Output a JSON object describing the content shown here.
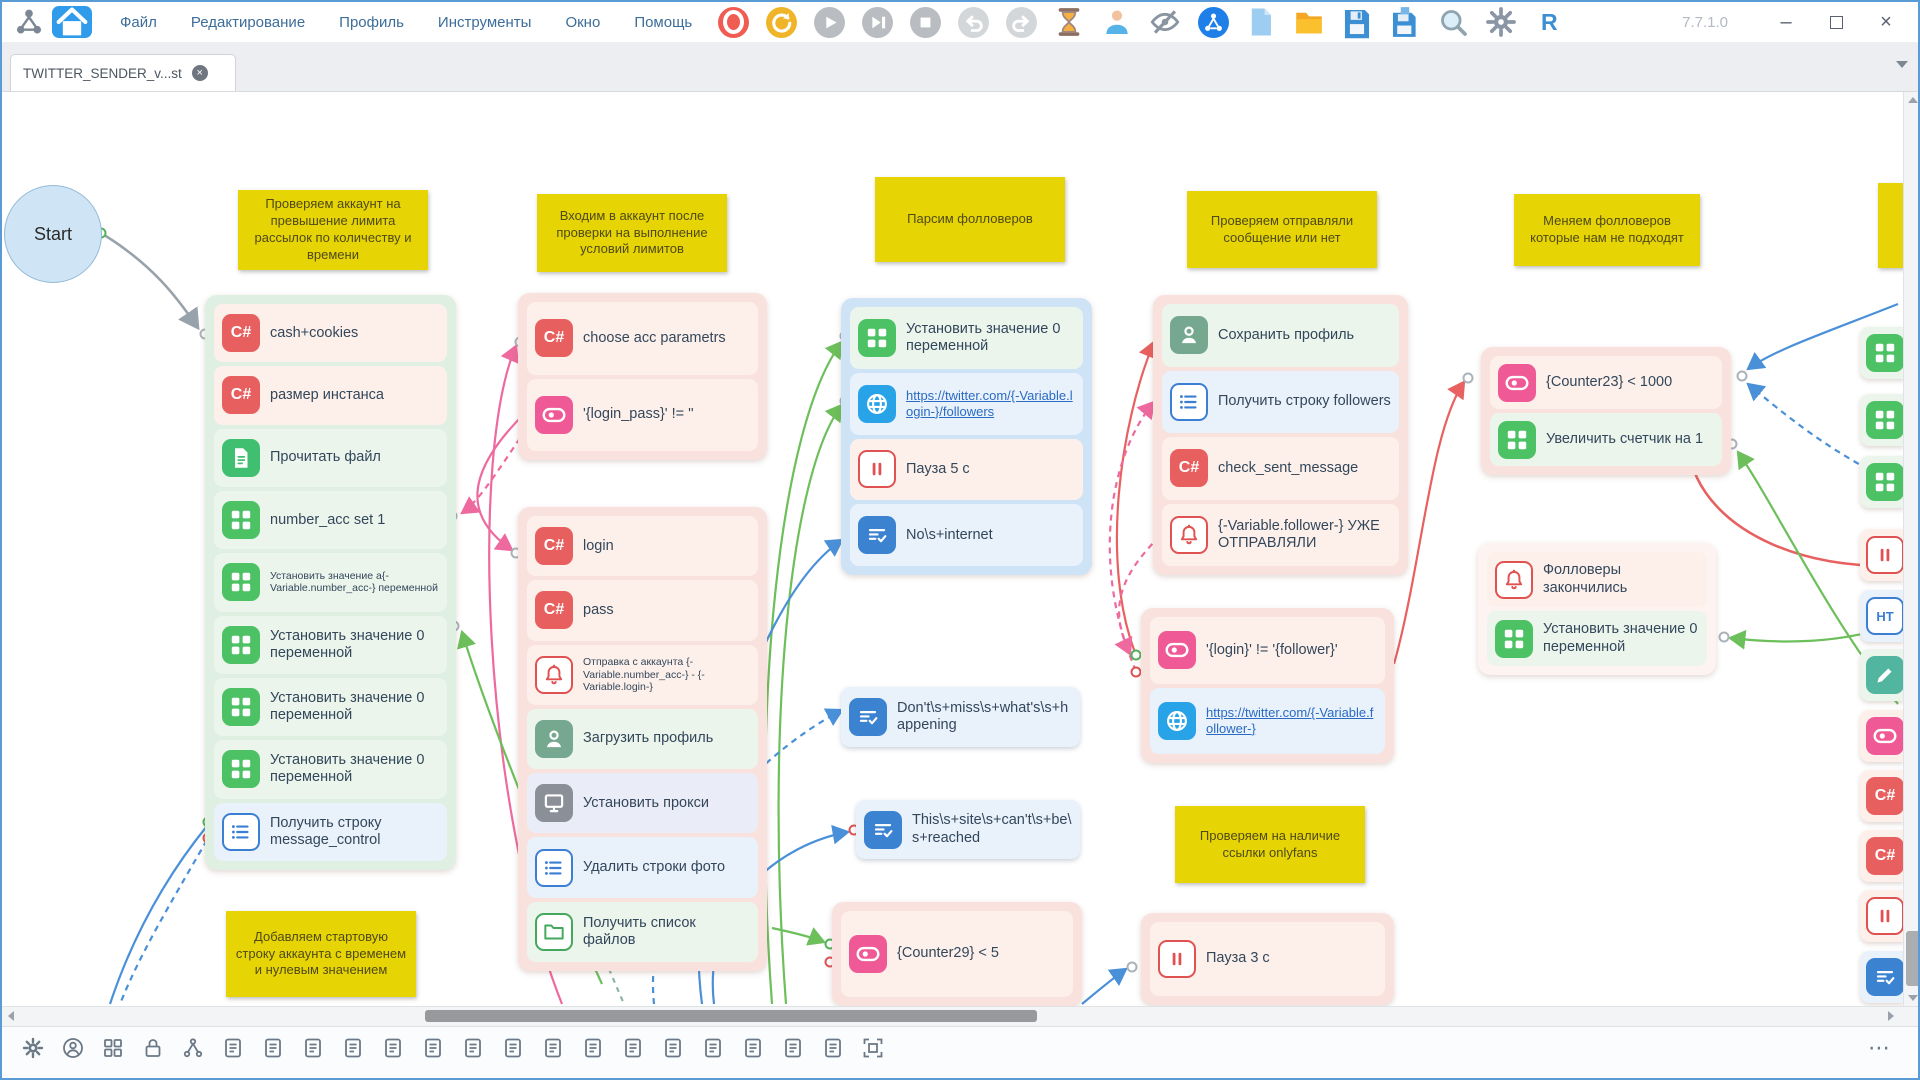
{
  "window": {
    "version": "7.7.1.0",
    "minimize": "–",
    "close": "×"
  },
  "menubar": {
    "items": [
      "Файл",
      "Редактирование",
      "Профиль",
      "Инструменты",
      "Окно",
      "Помощь"
    ]
  },
  "toolbar": {
    "buttons": [
      "record",
      "restart",
      "play",
      "step",
      "stop",
      "undo",
      "redo",
      "wait",
      "profile",
      "hide-browser",
      "app",
      "new-project",
      "open-project",
      "save",
      "save-all",
      "search",
      "settings",
      "r-code"
    ]
  },
  "tabbar": {
    "tabs": [
      {
        "label": "TWITTER_SENDER_v...st"
      }
    ]
  },
  "glyphs": {
    "csharp": "C#",
    "r_button": "R",
    "html": "HT",
    "ellipsis": "⋯"
  },
  "canvas": {
    "start_label": "Start",
    "notes": [
      {
        "text": "Проверяем аккаунт на превышение лимита рассылок по количеству и времени"
      },
      {
        "text": "Входим в аккаунт  после проверки на выполнение условий лимитов"
      },
      {
        "text": "Парсим фолловеров"
      },
      {
        "text": "Проверяем отправляли сообщение или нет"
      },
      {
        "text": "Меняем фолловеров которые нам не подходят"
      },
      {
        "text": "Добавляем стартовую строку аккаунта с временем и нулевым значением"
      },
      {
        "text": "Проверяем на наличие ссылки onlyfans"
      },
      {
        "text": ""
      }
    ],
    "groups": {
      "g1": [
        {
          "icon": "csharp",
          "label": "cash+cookies",
          "bg": "pink"
        },
        {
          "icon": "csharp",
          "label": "размер инстанса",
          "bg": "pink"
        },
        {
          "icon": "file",
          "label": "Прочитать файл",
          "bg": "green"
        },
        {
          "icon": "grid",
          "label": "number_acc set 1",
          "bg": "green"
        },
        {
          "icon": "grid",
          "label": "Установить значение а{-Variable.number_acc-} переменной",
          "bg": "green",
          "small": true
        },
        {
          "icon": "grid",
          "label": "Установить значение 0 переменной",
          "bg": "green"
        },
        {
          "icon": "grid",
          "label": "Установить значение 0 переменной",
          "bg": "green"
        },
        {
          "icon": "grid",
          "label": "Установить значение 0 переменной",
          "bg": "green"
        },
        {
          "icon": "list",
          "label": "Получить строку message_control",
          "bg": "blue"
        }
      ],
      "g2a": [
        {
          "icon": "csharp",
          "label": "choose acc parametrs",
          "bg": "pink"
        },
        {
          "icon": "toggle",
          "label": "'{login_pass}' != ''",
          "bg": "pink"
        }
      ],
      "g2b": [
        {
          "icon": "csharp",
          "label": "login",
          "bg": "pink"
        },
        {
          "icon": "csharp",
          "label": "pass",
          "bg": "pink"
        },
        {
          "icon": "bell",
          "label": "Отправка с аккаунта {-Variable.number_acc-} - {-Variable.login-}",
          "bg": "pink",
          "small": true
        },
        {
          "icon": "person",
          "label": "Загрузить профиль",
          "bg": "green"
        },
        {
          "icon": "monitor",
          "label": "Установить прокси",
          "bg": "lav"
        },
        {
          "icon": "list",
          "label": "Удалить строки фото",
          "bg": "blue"
        },
        {
          "icon": "folder",
          "label": "Получить список файлов",
          "bg": "green"
        }
      ],
      "g3": [
        {
          "icon": "grid",
          "label": "Установить значение 0 переменной",
          "bg": "green"
        },
        {
          "icon": "globe",
          "label": "https://twitter.com/{-Variable.login-}/followers",
          "bg": "blue",
          "link": true
        },
        {
          "icon": "pause",
          "label": "Пауза 5 с",
          "bg": "pink"
        },
        {
          "icon": "listcheck",
          "label": "No\\s+internet",
          "bg": "blue"
        }
      ],
      "g4": [
        {
          "icon": "person",
          "label": "Сохранить профиль",
          "bg": "green"
        },
        {
          "icon": "list",
          "label": "Получить строку followers",
          "bg": "blue"
        },
        {
          "icon": "csharp",
          "label": "check_sent_message",
          "bg": "pink"
        },
        {
          "icon": "bell",
          "label": "{-Variable.follower-} УЖЕ ОТПРАВЛЯЛИ",
          "bg": "pink"
        }
      ],
      "g5": [
        {
          "icon": "toggle",
          "label": "'{login}' != '{follower}'",
          "bg": "pink"
        },
        {
          "icon": "globe",
          "label": "https://twitter.com/{-Variable.follower-}",
          "bg": "blue",
          "link": true
        }
      ],
      "g6": [
        {
          "icon": "toggle",
          "label": "{Counter23} < 1000",
          "bg": "pink"
        },
        {
          "icon": "grid",
          "label": "Увеличить счетчик на 1",
          "bg": "green"
        }
      ],
      "g7": [
        {
          "icon": "bell",
          "label": "Фолловеры закончились",
          "bg": "pink"
        },
        {
          "icon": "grid",
          "label": "Установить значение 0 переменной",
          "bg": "green"
        }
      ],
      "c29": [
        {
          "icon": "toggle",
          "label": "{Counter29} < 5",
          "bg": "pink"
        }
      ],
      "p3": [
        {
          "icon": "pause",
          "label": "Пауза 3 с",
          "bg": "pink"
        }
      ]
    },
    "blocks": {
      "dont_miss": {
        "icon": "listcheck",
        "label": "Don't\\s+miss\\s+what's\\s+happening",
        "bg": "blue"
      },
      "site_unreachable": {
        "icon": "listcheck",
        "label": "This\\s+site\\s+can't\\s+be\\s+reached",
        "bg": "blue"
      }
    },
    "edge_rows": [
      {
        "icon": "grid",
        "bg": "green"
      },
      {
        "icon": "grid",
        "bg": "green"
      },
      {
        "icon": "grid",
        "bg": "green"
      },
      {
        "icon": "pause",
        "bg": "pink"
      },
      {
        "icon": "html",
        "bg": "blue"
      },
      {
        "icon": "pencil",
        "bg": "green"
      },
      {
        "icon": "toggle",
        "bg": "pink"
      },
      {
        "icon": "csharp",
        "bg": "pink"
      },
      {
        "icon": "csharp",
        "bg": "pink"
      },
      {
        "icon": "pause",
        "bg": "pink"
      },
      {
        "icon": "listcheck",
        "bg": "blue"
      }
    ],
    "connection_colors": {
      "default": "#98a2ab",
      "success": "#6cbf5a",
      "fail": "#e86060",
      "pink": "#ee6a9e",
      "blue": "#4a90d9"
    }
  },
  "bottom_toolbar": {
    "icons": [
      "settings",
      "account",
      "blocks",
      "lock",
      "action-tree"
    ],
    "doc_icon_count": 16
  }
}
